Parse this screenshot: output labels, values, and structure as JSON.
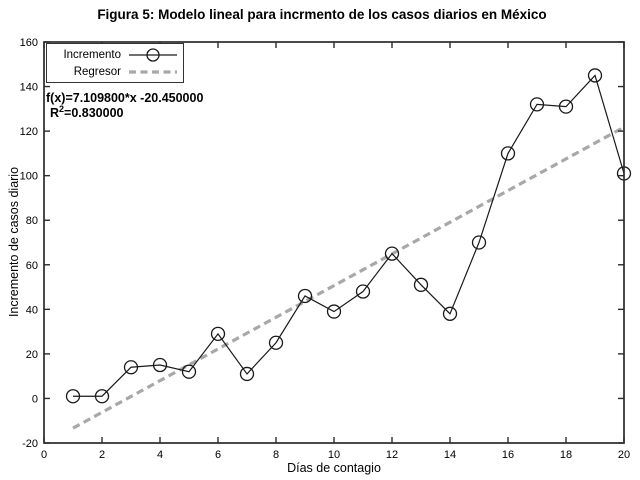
{
  "chart_data": {
    "type": "line",
    "title": "Figura 5: Modelo lineal para incrmento de los casos diarios en México",
    "xlabel": "Días de contagio",
    "ylabel": "Incremento de casos diario",
    "xlim": [
      0,
      20
    ],
    "ylim": [
      -20,
      160
    ],
    "xticks": [
      0,
      2,
      4,
      6,
      8,
      10,
      12,
      14,
      16,
      18,
      20
    ],
    "yticks": [
      -20,
      0,
      20,
      40,
      60,
      80,
      100,
      120,
      140,
      160
    ],
    "grid": false,
    "x": [
      1,
      2,
      3,
      4,
      5,
      6,
      7,
      8,
      9,
      10,
      11,
      12,
      13,
      14,
      15,
      16,
      17,
      18,
      19,
      20
    ],
    "series": [
      {
        "name": "Incremento",
        "marker": "open-circle",
        "values": [
          1,
          1,
          14,
          15,
          12,
          29,
          11,
          25,
          46,
          39,
          48,
          65,
          51,
          38,
          70,
          110,
          132,
          131,
          145,
          101
        ]
      }
    ],
    "regression": {
      "name": "Regresor",
      "style": "dashed",
      "slope": 7.1098,
      "intercept": -20.45,
      "r_squared": 0.83,
      "x_start": 1,
      "x_end": 20
    },
    "legend": {
      "position": "top-left",
      "entries": [
        {
          "label": "Incremento"
        },
        {
          "label": "Regresor"
        }
      ]
    },
    "annotation": {
      "line1": "f(x)=7.109800*x -20.450000",
      "r_base": "R",
      "r_sup": "2",
      "r_rest": "=0.830000"
    },
    "colors": {
      "data": "#1a1a1a",
      "regressor": "#a8a8a8",
      "axis": "#2b2b2b",
      "text": "#000000"
    }
  }
}
